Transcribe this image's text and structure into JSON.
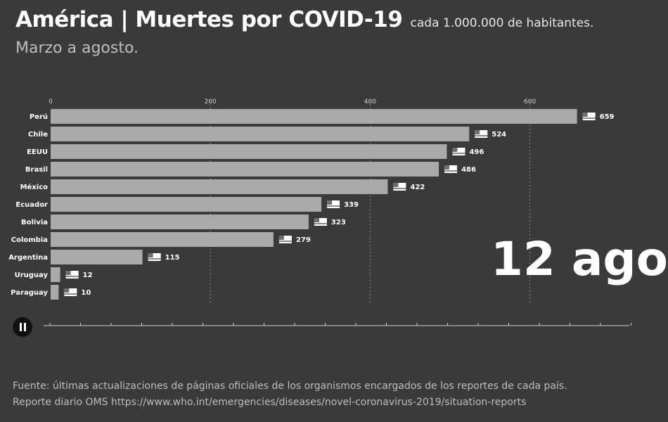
{
  "header": {
    "title": "América | Muertes por COVID-19",
    "title_suffix": "cada 1.000.000 de habitantes.",
    "subtitle": "Marzo a agosto."
  },
  "date_overlay": "12 ago",
  "footer": {
    "source_line_1": "Fuente: últimas actualizaciones de páginas oficiales de los organismos encargados de los reportes de cada país.",
    "source_line_2": "Reporte diario OMS https://www.who.int/emergencies/diseases/novel-coronavirus-2019/situation-reports"
  },
  "colors": {
    "background": "#3a3a3a",
    "bar": "#a9a9a9",
    "gridline": "#8a8a8a",
    "text": "#ffffff"
  },
  "chart_data": {
    "type": "bar",
    "orientation": "horizontal",
    "categories": [
      "Perú",
      "Chile",
      "EEUU",
      "Brasil",
      "México",
      "Ecuador",
      "Bolivia",
      "Colombia",
      "Argentina",
      "Uruguay",
      "Paraguay"
    ],
    "values": [
      659,
      524,
      496,
      486,
      422,
      339,
      323,
      279,
      115,
      12,
      10
    ],
    "data_labels": [
      "659",
      "524",
      "496",
      "486",
      "422",
      "339",
      "323",
      "279",
      "115",
      "12",
      "10"
    ],
    "x_ticks": [
      "0",
      "200",
      "400",
      "600"
    ],
    "xlim": [
      0,
      730
    ],
    "grid": "vertical dashed",
    "flag_icons": [
      "flag-peru-icon",
      "flag-chile-icon",
      "flag-usa-icon",
      "flag-brazil-icon",
      "flag-mexico-icon",
      "flag-ecuador-icon",
      "flag-bolivia-icon",
      "flag-colombia-icon",
      "flag-argentina-icon",
      "flag-uruguay-icon",
      "flag-paraguay-icon"
    ]
  }
}
